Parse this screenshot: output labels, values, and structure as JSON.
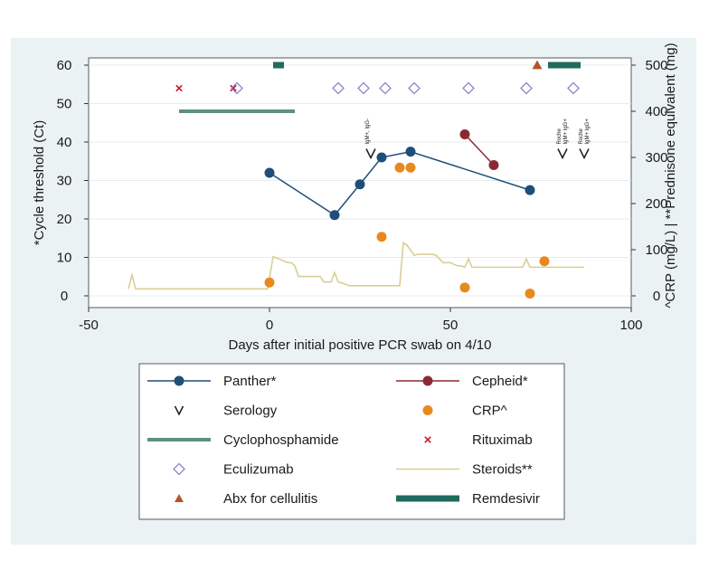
{
  "chart_data": {
    "type": "line",
    "xlabel": "Days after initial positive PCR swab on 4/10",
    "ylabel": "*Cycle threshold (Ct)",
    "ylabel_right": "^CRP (mg/L)  |  **Prednisone equivalent (mg)",
    "xlim": [
      -50,
      100
    ],
    "ylim": [
      0,
      60
    ],
    "ylim_right": [
      0,
      500
    ],
    "x_ticks": [
      "-50",
      "0",
      "50",
      "100"
    ],
    "y_ticks": [
      "0",
      "10",
      "20",
      "30",
      "40",
      "50",
      "60"
    ],
    "y_ticks_right": [
      "0",
      "100",
      "200",
      "300",
      "400",
      "500"
    ],
    "series": [
      {
        "name": "Panther*",
        "style": "line-marker",
        "color": "#1f4e79",
        "x": [
          0,
          18,
          25,
          31,
          39,
          72
        ],
        "y": [
          32,
          21,
          29,
          36,
          37.5,
          27.5
        ]
      },
      {
        "name": "Cepheid*",
        "style": "line-marker",
        "color": "#8b2a35",
        "x": [
          54,
          62
        ],
        "y": [
          42,
          34
        ]
      },
      {
        "name": "Serology",
        "style": "chevron",
        "color": "#1a1a1a",
        "x": [
          28,
          81,
          87
        ],
        "y": [
          38,
          38,
          38
        ],
        "annotations": [
          {
            "x": 28,
            "lines": [
              "IgM+, IgG-"
            ]
          },
          {
            "x": 81,
            "lines": [
              "Roche",
              "IgM+ IgG+"
            ]
          },
          {
            "x": 87,
            "lines": [
              "Roche",
              "IgM+ IgG+"
            ]
          }
        ]
      },
      {
        "name": "CRP^",
        "style": "marker",
        "color": "#e8891e",
        "axis": "right",
        "x": [
          0,
          31,
          36,
          39,
          54,
          72,
          76
        ],
        "y": [
          29,
          128,
          278,
          278,
          18,
          5,
          75
        ]
      },
      {
        "name": "Cyclophosphamide",
        "style": "bar",
        "color": "#5f8f7e",
        "x": [
          -25,
          7
        ],
        "y": 48
      },
      {
        "name": "Rituximab",
        "style": "x-marker",
        "color": "#c8102e",
        "x": [
          -25,
          -10
        ],
        "y": [
          54,
          54
        ]
      },
      {
        "name": "Eculizumab",
        "style": "diamond",
        "color": "#8a86c9",
        "x": [
          -9,
          19,
          26,
          32,
          40,
          55,
          71,
          84
        ],
        "y": [
          54,
          54,
          54,
          54,
          54,
          54,
          54,
          54
        ]
      },
      {
        "name": "Steroids**",
        "style": "line",
        "color": "#d8cf95",
        "axis": "right",
        "x": [
          -39,
          -38,
          -37,
          -30,
          -20,
          -10,
          -1,
          -0.5,
          1,
          2,
          5,
          6,
          7,
          8,
          10,
          12,
          14,
          15,
          17,
          18,
          19,
          20,
          22,
          30,
          36,
          37,
          38,
          40,
          41,
          42,
          44,
          45,
          46,
          47,
          48,
          49,
          50,
          51,
          52,
          53,
          54,
          55,
          56,
          60,
          70,
          71,
          72,
          73,
          80,
          87
        ],
        "y": [
          15,
          45,
          15,
          15,
          15,
          15,
          15,
          15,
          85,
          82,
          72,
          72,
          65,
          42,
          42,
          42,
          42,
          30,
          30,
          50,
          30,
          28,
          22,
          22,
          22,
          115,
          110,
          88,
          90,
          90,
          90,
          90,
          88,
          80,
          72,
          72,
          72,
          68,
          65,
          65,
          62,
          80,
          62,
          62,
          62,
          80,
          62,
          62,
          62,
          62
        ]
      },
      {
        "name": "Abx for cellulitis",
        "style": "triangle",
        "color": "#b5532a",
        "x": [
          74
        ],
        "y": [
          60
        ]
      },
      {
        "name": "Remdesivir",
        "style": "bar",
        "color": "#1f6b5e",
        "x_ranges": [
          [
            1,
            4
          ],
          [
            77,
            86
          ]
        ],
        "y": 60
      }
    ],
    "legend_placement": "bottom",
    "grid": "horizontal"
  }
}
